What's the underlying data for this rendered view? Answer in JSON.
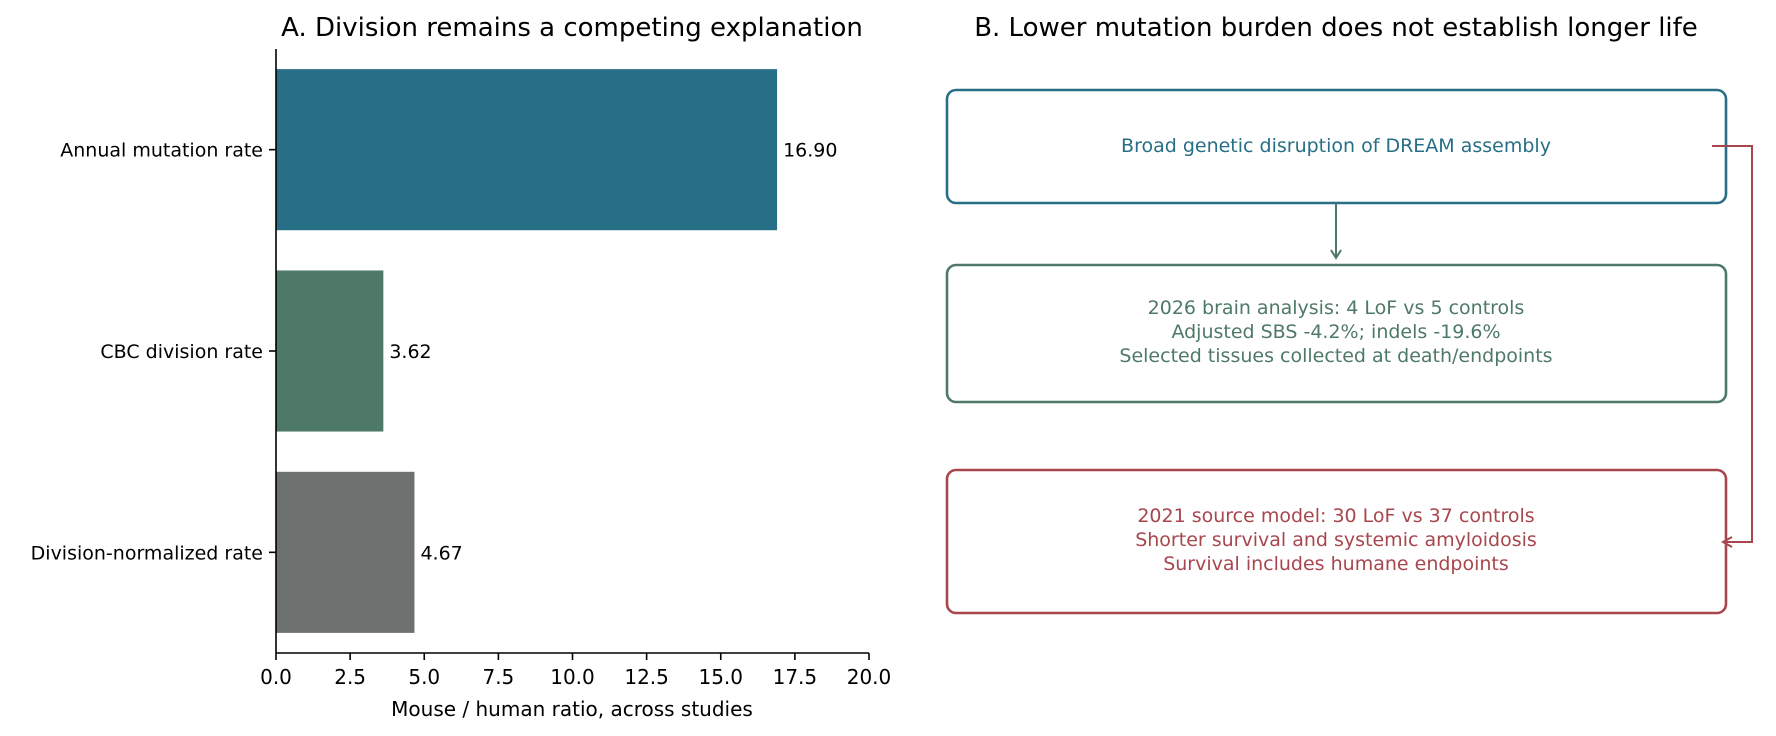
{
  "chart_data": [
    {
      "type": "bar",
      "orientation": "horizontal",
      "title": "A. Division remains a competing explanation",
      "xlabel": "Mouse / human ratio, across studies",
      "ylabel": "",
      "xlim": [
        0,
        20
      ],
      "xticks": [
        "0.0",
        "2.5",
        "5.0",
        "7.5",
        "10.0",
        "12.5",
        "15.0",
        "17.5",
        "20.0"
      ],
      "categories": [
        "Annual mutation rate",
        "CBC division rate",
        "Division-normalized rate"
      ],
      "values": [
        16.9,
        3.62,
        4.67
      ],
      "value_labels": [
        "16.90",
        "3.62",
        "4.67"
      ],
      "colors": [
        "#276f86",
        "#4e7966",
        "#6c716f"
      ],
      "grid": false
    }
  ],
  "diagram": {
    "title": "B. Lower mutation burden does not establish longer life",
    "boxes": [
      {
        "id": "dream",
        "color": "#276f86",
        "lines": [
          "Broad genetic disruption of DREAM assembly"
        ]
      },
      {
        "id": "brain-2026",
        "color": "#4e7966",
        "lines": [
          "2026 brain analysis: 4 LoF vs 5 controls",
          "Adjusted SBS -4.2%; indels -19.6%",
          "Selected tissues collected at death/endpoints"
        ]
      },
      {
        "id": "source-2021",
        "color": "#a8464d",
        "lines": [
          "2021 source model: 30 LoF vs 37 controls",
          "Shorter survival and systemic amyloidosis",
          "Survival includes humane endpoints"
        ]
      }
    ],
    "arrow_colors": {
      "dream_to_brain": "#4e7966",
      "dream_to_source": "#a8464d"
    }
  }
}
